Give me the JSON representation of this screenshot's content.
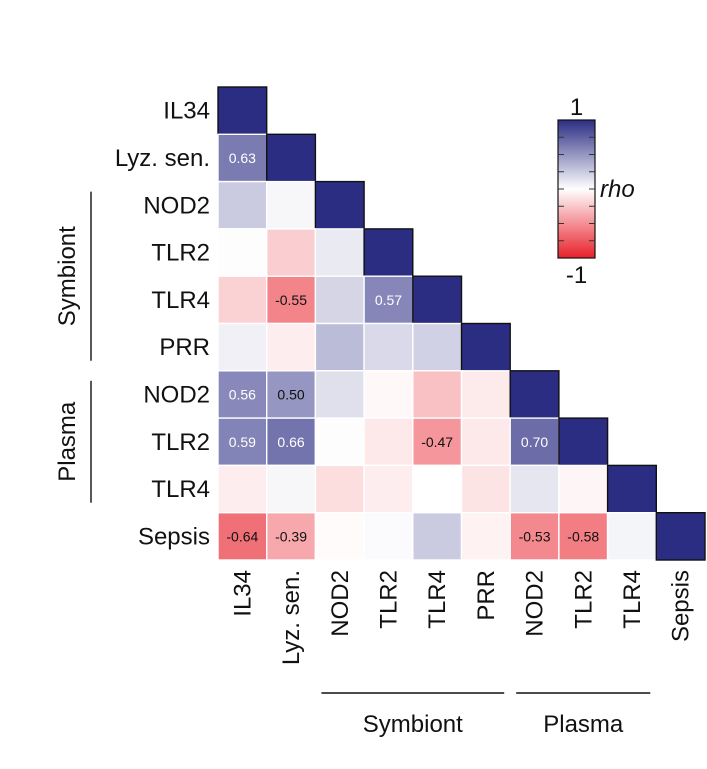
{
  "chart_data": {
    "type": "heatmap",
    "labels": [
      "IL34",
      "Lyz. sen.",
      "NOD2",
      "TLR2",
      "TLR4",
      "PRR",
      "NOD2",
      "TLR2",
      "TLR4",
      "Sepsis"
    ],
    "groups": [
      {
        "name": "Symbiont",
        "rows": [
          2,
          5
        ],
        "cols": [
          2,
          5
        ]
      },
      {
        "name": "Plasma",
        "rows": [
          6,
          8
        ],
        "cols": [
          6,
          8
        ]
      }
    ],
    "matrix": [
      [
        1
      ],
      [
        0.63,
        1
      ],
      [
        0.25,
        0.04,
        1
      ],
      [
        0.01,
        -0.22,
        0.1,
        1
      ],
      [
        -0.2,
        -0.55,
        0.2,
        0.57,
        1
      ],
      [
        0.07,
        -0.08,
        0.32,
        0.18,
        0.22,
        1
      ],
      [
        0.56,
        0.5,
        0.15,
        -0.03,
        -0.28,
        -0.09,
        1
      ],
      [
        0.59,
        0.66,
        0.01,
        -0.1,
        -0.47,
        -0.1,
        0.7,
        1
      ],
      [
        -0.08,
        0.04,
        -0.15,
        -0.08,
        0.0,
        -0.12,
        0.12,
        -0.04,
        1
      ],
      [
        -0.64,
        -0.39,
        -0.02,
        0.02,
        0.25,
        -0.06,
        -0.53,
        -0.58,
        0.05,
        1
      ]
    ],
    "shown_labels": [
      {
        "r": 1,
        "c": 0,
        "text": "0.63"
      },
      {
        "r": 4,
        "c": 1,
        "text": "-0.55"
      },
      {
        "r": 4,
        "c": 3,
        "text": "0.57"
      },
      {
        "r": 6,
        "c": 0,
        "text": "0.56"
      },
      {
        "r": 6,
        "c": 1,
        "text": "0.50"
      },
      {
        "r": 7,
        "c": 0,
        "text": "0.59"
      },
      {
        "r": 7,
        "c": 1,
        "text": "0.66"
      },
      {
        "r": 7,
        "c": 4,
        "text": "-0.47"
      },
      {
        "r": 7,
        "c": 6,
        "text": "0.70"
      },
      {
        "r": 9,
        "c": 0,
        "text": "-0.64"
      },
      {
        "r": 9,
        "c": 1,
        "text": "-0.39"
      },
      {
        "r": 9,
        "c": 6,
        "text": "-0.53"
      },
      {
        "r": 9,
        "c": 7,
        "text": "-0.58"
      }
    ],
    "colorbar": {
      "label": "rho",
      "max_label": "1",
      "min_label": "-1",
      "range": [
        -1,
        1
      ]
    },
    "colors": {
      "positive": "#2b2d83",
      "neutral": "#ffffff",
      "negative": "#e8202a",
      "cell_border": "#ffffff",
      "diag_border": "#111111"
    }
  }
}
